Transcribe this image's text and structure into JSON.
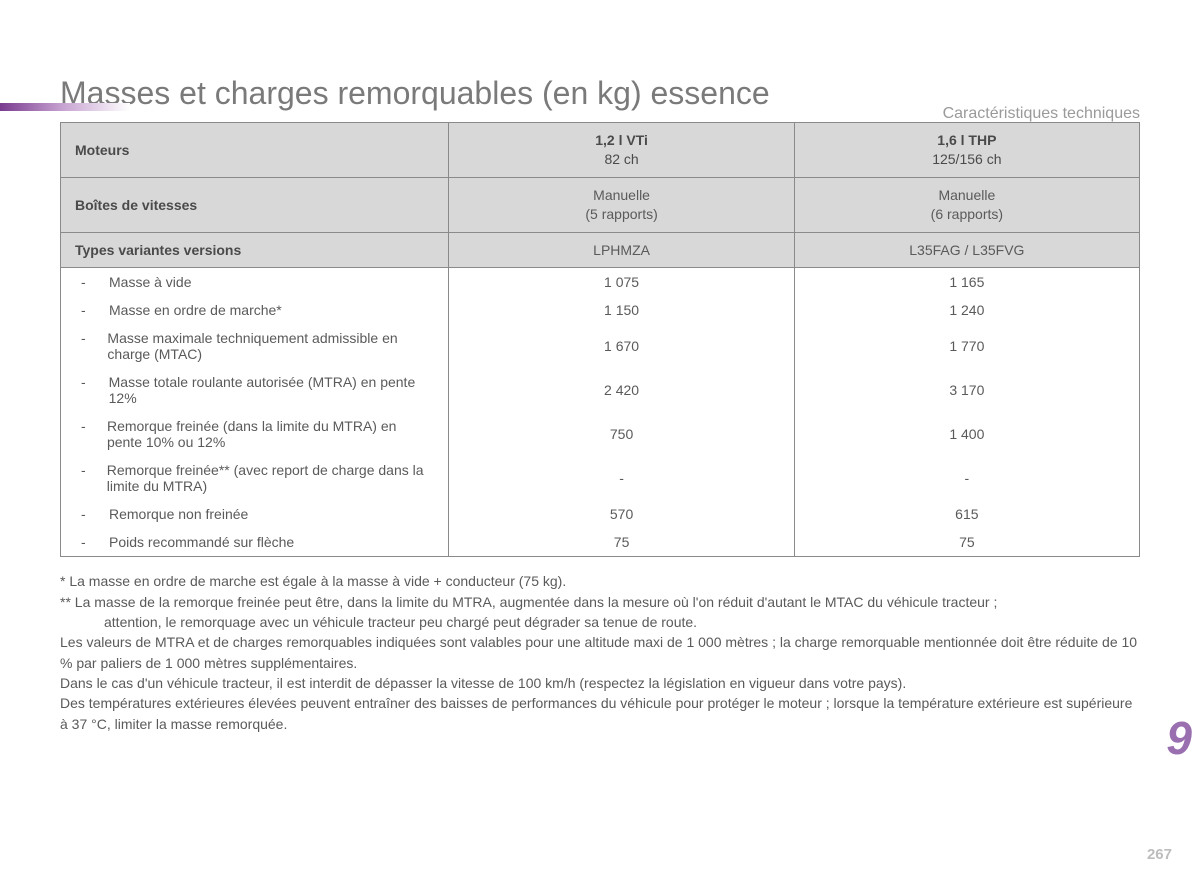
{
  "header_label": "Caractéristiques techniques",
  "title": "Masses et charges remorquables (en kg) essence",
  "table": {
    "header_rows": [
      {
        "label": "Moteurs",
        "col1_line1": "1,2 l VTi",
        "col1_line2": "82 ch",
        "col2_line1": "1,6 l THP",
        "col2_line2": "125/156 ch"
      },
      {
        "label": "Boîtes de vitesses",
        "col1_line1": "Manuelle",
        "col1_line2": "(5 rapports)",
        "col2_line1": "Manuelle",
        "col2_line2": "(6 rapports)"
      },
      {
        "label": "Types variantes versions",
        "col1_line1": "LPHMZA",
        "col1_line2": "",
        "col2_line1": "L35FAG / L35FVG",
        "col2_line2": ""
      }
    ],
    "data_rows": [
      {
        "label": "Masse à vide",
        "v1": "1 075",
        "v2": "1 165"
      },
      {
        "label": "Masse en ordre de marche*",
        "v1": "1 150",
        "v2": "1 240"
      },
      {
        "label": "Masse maximale techniquement admissible en charge (MTAC)",
        "v1": "1 670",
        "v2": "1 770"
      },
      {
        "label": "Masse totale roulante autorisée (MTRA) en pente 12%",
        "v1": "2 420",
        "v2": "3 170"
      },
      {
        "label": "Remorque freinée (dans la limite du MTRA) en pente 10% ou 12%",
        "v1": "750",
        "v2": "1 400"
      },
      {
        "label": "Remorque freinée** (avec report de charge dans la limite du MTRA)",
        "v1": "-",
        "v2": "-"
      },
      {
        "label": "Remorque non freinée",
        "v1": "570",
        "v2": "615"
      },
      {
        "label": "Poids recommandé sur flèche",
        "v1": "75",
        "v2": "75"
      }
    ]
  },
  "notes": {
    "n1": "* La masse en ordre de marche est égale à la masse à vide + conducteur (75 kg).",
    "n2a": "** La masse de la remorque freinée peut être, dans la limite du MTRA, augmentée dans la mesure où l'on réduit d'autant le MTAC du véhicule tracteur ;",
    "n2b": "attention, le remorquage avec un véhicule tracteur peu chargé peut dégrader sa tenue de route.",
    "n3": "Les valeurs de MTRA et de charges remorquables indiquées sont valables pour une altitude maxi de 1 000 mètres ; la charge remorquable mentionnée doit être réduite de 10 % par paliers de 1 000 mètres supplémentaires.",
    "n4": "Dans le cas d'un véhicule tracteur, il est interdit de dépasser la vitesse de 100 km/h (respectez la législation en vigueur dans votre pays).",
    "n5": "Des températures extérieures élevées peuvent entraîner des baisses de performances du véhicule pour protéger le moteur ; lorsque la température extérieure est supérieure à 37 °C, limiter la masse remorquée."
  },
  "chapter_number": "9",
  "page_number": "267"
}
